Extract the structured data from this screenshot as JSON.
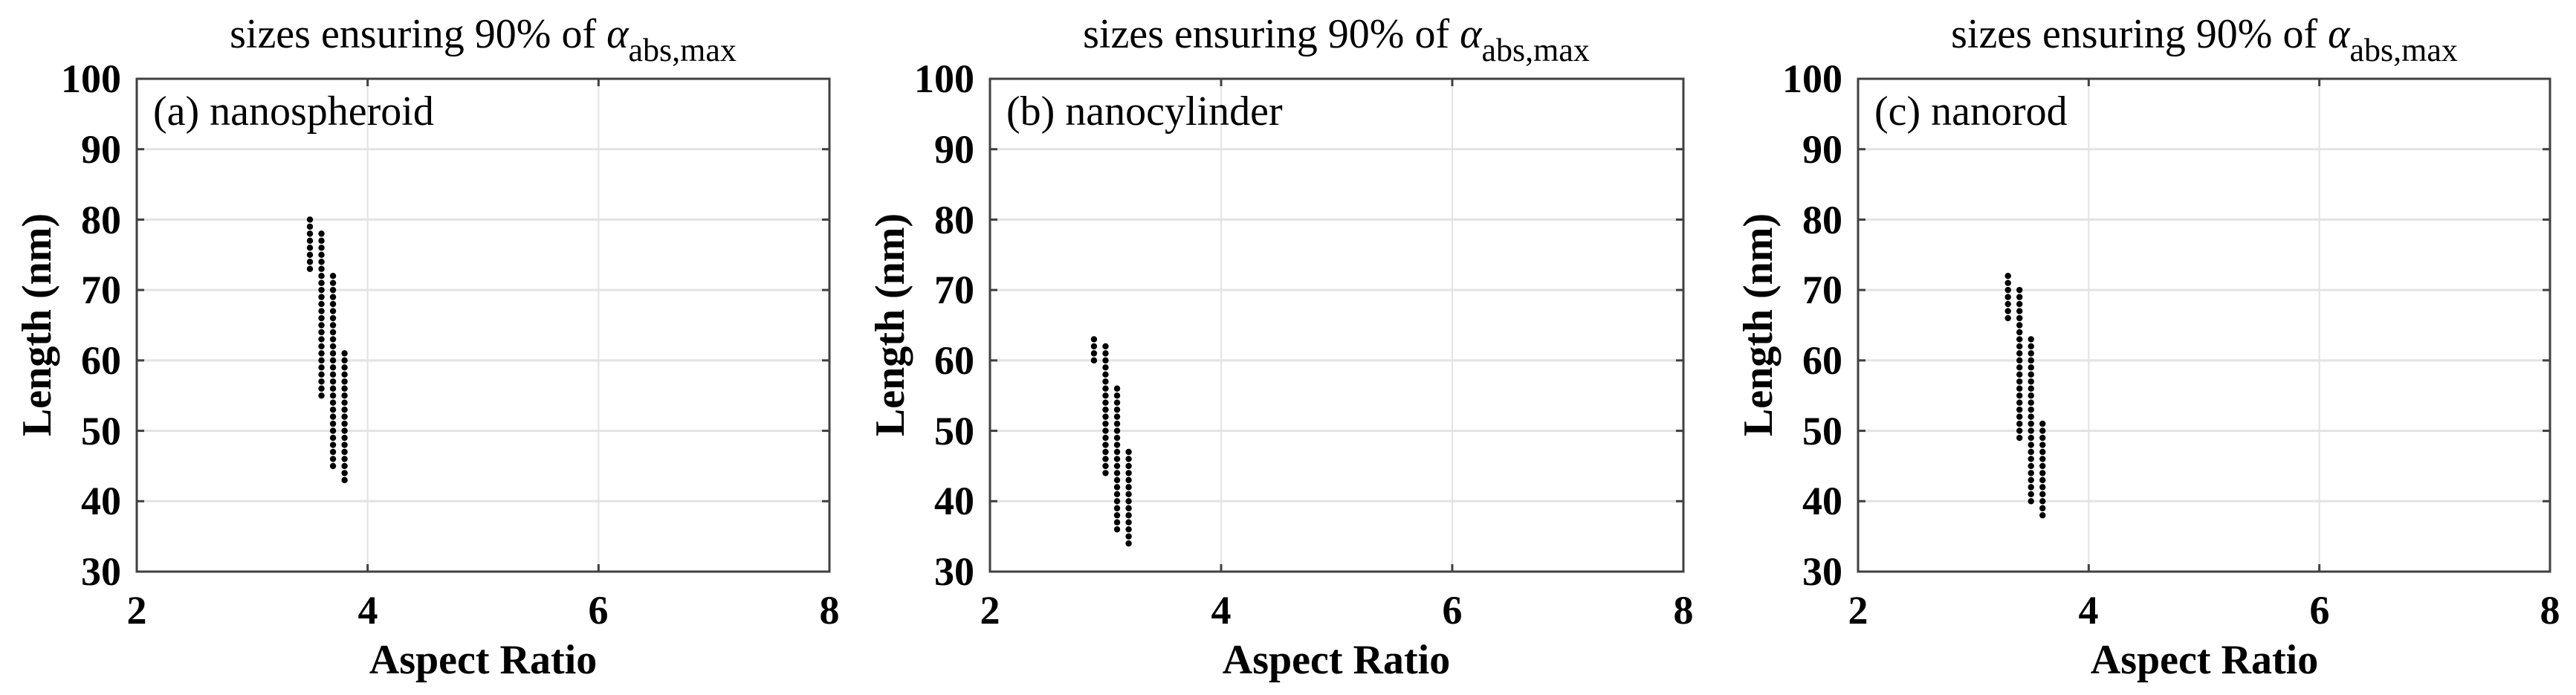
{
  "figure": {
    "panels": [
      {
        "title_main": "sizes ensuring 90% of ",
        "title_symbol": "α",
        "title_subscript": "abs,max",
        "panel_label": "(a) nanospheroid",
        "xlabel": "Aspect Ratio",
        "ylabel": "Length (nm)",
        "xticks": [
          "2",
          "4",
          "6",
          "8"
        ],
        "yticks": [
          "30",
          "40",
          "50",
          "60",
          "70",
          "80",
          "90",
          "100"
        ]
      },
      {
        "title_main": "sizes ensuring 90% of ",
        "title_symbol": "α",
        "title_subscript": "abs,max",
        "panel_label": "(b) nanocylinder",
        "xlabel": "Aspect Ratio",
        "ylabel": "Length (nm)",
        "xticks": [
          "2",
          "4",
          "6",
          "8"
        ],
        "yticks": [
          "30",
          "40",
          "50",
          "60",
          "70",
          "80",
          "90",
          "100"
        ]
      },
      {
        "title_main": "sizes ensuring 90% of ",
        "title_symbol": "α",
        "title_subscript": "abs,max",
        "panel_label": "(c) nanorod",
        "xlabel": "Aspect Ratio",
        "ylabel": "Length (nm)",
        "xticks": [
          "2",
          "4",
          "6",
          "8"
        ],
        "yticks": [
          "30",
          "40",
          "50",
          "60",
          "70",
          "80",
          "90",
          "100"
        ]
      }
    ]
  },
  "colors": {
    "marker": "#000000",
    "axis": "#404040",
    "grid": "#e3e3e3"
  },
  "chart_data": [
    {
      "type": "scatter",
      "title": "sizes ensuring 90% of α_abs,max",
      "annotation": "(a) nanospheroid",
      "xlabel": "Aspect Ratio",
      "ylabel": "Length (nm)",
      "xlim": [
        2,
        8
      ],
      "ylim": [
        30,
        100
      ],
      "xticks": [
        2,
        4,
        6,
        8
      ],
      "yticks": [
        30,
        40,
        50,
        60,
        70,
        80,
        90,
        100
      ],
      "grid": true,
      "marker_step_nm": 1,
      "columns": [
        {
          "x": 3.5,
          "y_min": 73,
          "y_max": 80
        },
        {
          "x": 3.6,
          "y_min": 55,
          "y_max": 78
        },
        {
          "x": 3.7,
          "y_min": 45,
          "y_max": 72
        },
        {
          "x": 3.8,
          "y_min": 43,
          "y_max": 61
        }
      ]
    },
    {
      "type": "scatter",
      "title": "sizes ensuring 90% of α_abs,max",
      "annotation": "(b) nanocylinder",
      "xlabel": "Aspect Ratio",
      "ylabel": "Length (nm)",
      "xlim": [
        2,
        8
      ],
      "ylim": [
        30,
        100
      ],
      "xticks": [
        2,
        4,
        6,
        8
      ],
      "yticks": [
        30,
        40,
        50,
        60,
        70,
        80,
        90,
        100
      ],
      "grid": true,
      "marker_step_nm": 1,
      "columns": [
        {
          "x": 2.9,
          "y_min": 60,
          "y_max": 63
        },
        {
          "x": 3.0,
          "y_min": 44,
          "y_max": 62
        },
        {
          "x": 3.1,
          "y_min": 36,
          "y_max": 56
        },
        {
          "x": 3.2,
          "y_min": 34,
          "y_max": 47
        }
      ]
    },
    {
      "type": "scatter",
      "title": "sizes ensuring 90% of α_abs,max",
      "annotation": "(c) nanorod",
      "xlabel": "Aspect Ratio",
      "ylabel": "Length (nm)",
      "xlim": [
        2,
        8
      ],
      "ylim": [
        30,
        100
      ],
      "xticks": [
        2,
        4,
        6,
        8
      ],
      "yticks": [
        30,
        40,
        50,
        60,
        70,
        80,
        90,
        100
      ],
      "grid": true,
      "marker_step_nm": 1,
      "columns": [
        {
          "x": 3.3,
          "y_min": 66,
          "y_max": 72
        },
        {
          "x": 3.4,
          "y_min": 49,
          "y_max": 70
        },
        {
          "x": 3.5,
          "y_min": 40,
          "y_max": 63
        },
        {
          "x": 3.6,
          "y_min": 38,
          "y_max": 51
        }
      ]
    }
  ]
}
